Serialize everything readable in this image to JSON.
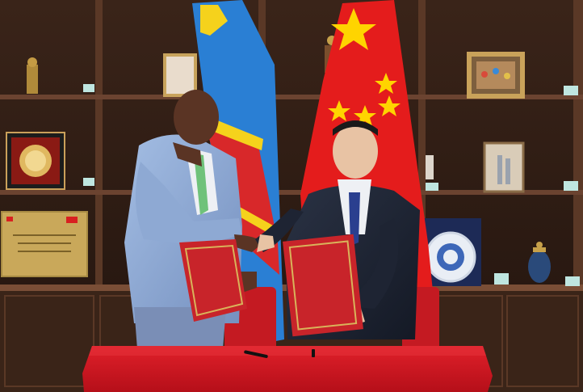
{
  "scene": {
    "colors": {
      "wall_dark": "#2a1a13",
      "wood": "#4a2d1f",
      "wood_light": "#6b4330",
      "shelf_edge": "#7a4e36",
      "tablecloth": "#d11420",
      "folder_red": "#c8242a",
      "folder_gold": "#d9b35a",
      "drc_blue": "#2a7fd4",
      "drc_yellow": "#f5d21c",
      "drc_red": "#d8282a",
      "china_red": "#e41c1c",
      "china_star": "#ffd400",
      "suit_light_blue": "#8ea9d3",
      "suit_navy": "#1e2433",
      "shirt_white": "#eef0f4",
      "tie_green": "#6fc27a",
      "tie_blue": "#2a3f8f",
      "skin_dark": "#5a3424",
      "skin_light": "#e8c3a4"
    },
    "icons": {
      "drc_flag": "drc-flag-icon",
      "china_flag": "china-flag-icon"
    }
  }
}
